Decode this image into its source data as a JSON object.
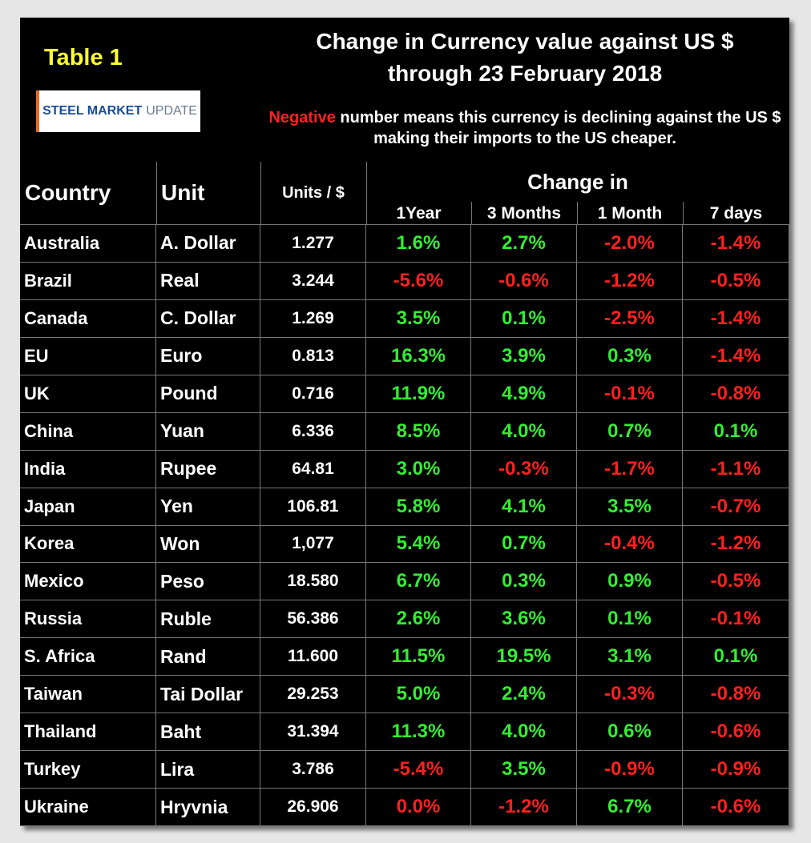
{
  "header": {
    "table_label": "Table 1",
    "logo": {
      "bold": "STEEL MARKET",
      "light": "UPDATE"
    },
    "title": [
      "Change in Currency value against US $",
      "through 23 February 2018"
    ],
    "note": {
      "highlight": "Negative",
      "text": "number means this currency is declining against the US $ making their imports to the US cheaper."
    }
  },
  "table": {
    "headers": {
      "country": "Country",
      "unit": "Unit",
      "units": "Units / $",
      "change_in": "Change in",
      "periods": [
        "1Year",
        "3 Months",
        "1 Month",
        "7 days"
      ]
    },
    "rows": [
      {
        "country": "Australia",
        "unit": "A. Dollar",
        "units": "1.277",
        "changes": [
          {
            "text": "1.6%",
            "color": "#33ee33"
          },
          {
            "text": "2.7%",
            "color": "#33ee33"
          },
          {
            "text": "-2.0%",
            "color": "#ff2020"
          },
          {
            "text": "-1.4%",
            "color": "#ff2020"
          }
        ]
      },
      {
        "country": "Brazil",
        "unit": "Real",
        "units": "3.244",
        "changes": [
          {
            "text": "-5.6%",
            "color": "#ff2020"
          },
          {
            "text": "-0.6%",
            "color": "#ff2020"
          },
          {
            "text": "-1.2%",
            "color": "#ff2020"
          },
          {
            "text": "-0.5%",
            "color": "#ff2020"
          }
        ]
      },
      {
        "country": "Canada",
        "unit": "C. Dollar",
        "units": "1.269",
        "changes": [
          {
            "text": "3.5%",
            "color": "#33ee33"
          },
          {
            "text": "0.1%",
            "color": "#33ee33"
          },
          {
            "text": "-2.5%",
            "color": "#ff2020"
          },
          {
            "text": "-1.4%",
            "color": "#ff2020"
          }
        ]
      },
      {
        "country": "EU",
        "unit": "Euro",
        "units": "0.813",
        "changes": [
          {
            "text": "16.3%",
            "color": "#33ee33"
          },
          {
            "text": "3.9%",
            "color": "#33ee33"
          },
          {
            "text": "0.3%",
            "color": "#33ee33"
          },
          {
            "text": "-1.4%",
            "color": "#ff2020"
          }
        ]
      },
      {
        "country": "UK",
        "unit": "Pound",
        "units": "0.716",
        "changes": [
          {
            "text": "11.9%",
            "color": "#33ee33"
          },
          {
            "text": "4.9%",
            "color": "#33ee33"
          },
          {
            "text": "-0.1%",
            "color": "#ff2020"
          },
          {
            "text": "-0.8%",
            "color": "#ff2020"
          }
        ]
      },
      {
        "country": "China",
        "unit": "Yuan",
        "units": "6.336",
        "changes": [
          {
            "text": "8.5%",
            "color": "#33ee33"
          },
          {
            "text": "4.0%",
            "color": "#33ee33"
          },
          {
            "text": "0.7%",
            "color": "#33ee33"
          },
          {
            "text": "0.1%",
            "color": "#33ee33"
          }
        ]
      },
      {
        "country": "India",
        "unit": "Rupee",
        "units": "64.81",
        "changes": [
          {
            "text": "3.0%",
            "color": "#33ee33"
          },
          {
            "text": "-0.3%",
            "color": "#ff2020"
          },
          {
            "text": "-1.7%",
            "color": "#ff2020"
          },
          {
            "text": "-1.1%",
            "color": "#ff2020"
          }
        ]
      },
      {
        "country": "Japan",
        "unit": "Yen",
        "units": "106.81",
        "changes": [
          {
            "text": "5.8%",
            "color": "#33ee33"
          },
          {
            "text": "4.1%",
            "color": "#33ee33"
          },
          {
            "text": "3.5%",
            "color": "#33ee33"
          },
          {
            "text": "-0.7%",
            "color": "#ff2020"
          }
        ]
      },
      {
        "country": "Korea",
        "unit": "Won",
        "units": "1,077",
        "changes": [
          {
            "text": "5.4%",
            "color": "#33ee33"
          },
          {
            "text": "0.7%",
            "color": "#33ee33"
          },
          {
            "text": "-0.4%",
            "color": "#ff2020"
          },
          {
            "text": "-1.2%",
            "color": "#ff2020"
          }
        ]
      },
      {
        "country": "Mexico",
        "unit": "Peso",
        "units": "18.580",
        "changes": [
          {
            "text": "6.7%",
            "color": "#33ee33"
          },
          {
            "text": "0.3%",
            "color": "#33ee33"
          },
          {
            "text": "0.9%",
            "color": "#33ee33"
          },
          {
            "text": "-0.5%",
            "color": "#ff2020"
          }
        ]
      },
      {
        "country": "Russia",
        "unit": "Ruble",
        "units": "56.386",
        "changes": [
          {
            "text": "2.6%",
            "color": "#33ee33"
          },
          {
            "text": "3.6%",
            "color": "#33ee33"
          },
          {
            "text": "0.1%",
            "color": "#33ee33"
          },
          {
            "text": "-0.1%",
            "color": "#ff2020"
          }
        ]
      },
      {
        "country": "S. Africa",
        "unit": "Rand",
        "units": "11.600",
        "changes": [
          {
            "text": "11.5%",
            "color": "#33ee33"
          },
          {
            "text": "19.5%",
            "color": "#33ee33"
          },
          {
            "text": "3.1%",
            "color": "#33ee33"
          },
          {
            "text": "0.1%",
            "color": "#33ee33"
          }
        ]
      },
      {
        "country": "Taiwan",
        "unit": "Tai Dollar",
        "units": "29.253",
        "changes": [
          {
            "text": "5.0%",
            "color": "#33ee33"
          },
          {
            "text": "2.4%",
            "color": "#33ee33"
          },
          {
            "text": "-0.3%",
            "color": "#ff2020"
          },
          {
            "text": "-0.8%",
            "color": "#ff2020"
          }
        ]
      },
      {
        "country": "Thailand",
        "unit": "Baht",
        "units": "31.394",
        "changes": [
          {
            "text": "11.3%",
            "color": "#33ee33"
          },
          {
            "text": "4.0%",
            "color": "#33ee33"
          },
          {
            "text": "0.6%",
            "color": "#33ee33"
          },
          {
            "text": "-0.6%",
            "color": "#ff2020"
          }
        ]
      },
      {
        "country": "Turkey",
        "unit": "Lira",
        "units": "3.786",
        "changes": [
          {
            "text": "-5.4%",
            "color": "#ff2020"
          },
          {
            "text": "3.5%",
            "color": "#33ee33"
          },
          {
            "text": "-0.9%",
            "color": "#ff2020"
          },
          {
            "text": "-0.9%",
            "color": "#ff2020"
          }
        ]
      },
      {
        "country": "Ukraine",
        "unit": "Hryvnia",
        "units": "26.906",
        "changes": [
          {
            "text": "0.0%",
            "color": "#ff2020"
          },
          {
            "text": "-1.2%",
            "color": "#ff2020"
          },
          {
            "text": "6.7%",
            "color": "#33ee33"
          },
          {
            "text": "-0.6%",
            "color": "#ff2020"
          }
        ]
      }
    ]
  }
}
